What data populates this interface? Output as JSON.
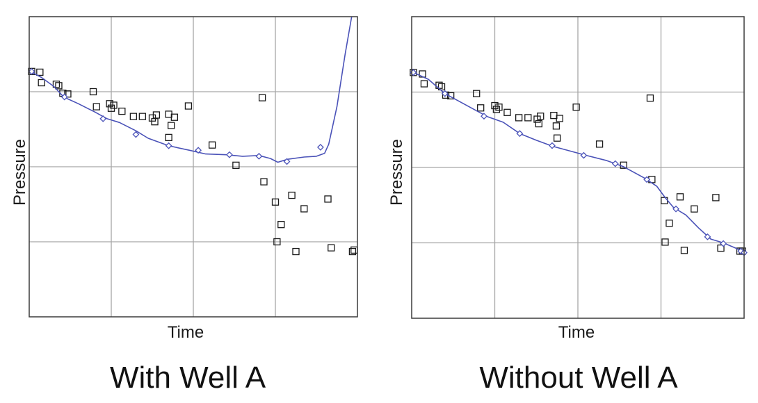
{
  "colors": {
    "fit_line": "#4a52b8",
    "marker_points": "#1a1a1a",
    "grid": "#a6a6a6",
    "frame": "#3a3a3a"
  },
  "chart_data": [
    {
      "type": "scatter",
      "caption": "With Well A",
      "xlabel": "Time",
      "ylabel": "Pressure",
      "xlim": [
        0,
        4
      ],
      "ylim": [
        0,
        4
      ],
      "grid": true,
      "series": [
        {
          "kind": "observed-points",
          "marker": "open-square",
          "points": [
            [
              0.03,
              3.27
            ],
            [
              0.13,
              3.26
            ],
            [
              0.15,
              3.12
            ],
            [
              0.33,
              3.1
            ],
            [
              0.36,
              3.08
            ],
            [
              0.41,
              2.98
            ],
            [
              0.47,
              2.97
            ],
            [
              0.78,
              3.0
            ],
            [
              0.82,
              2.8
            ],
            [
              0.98,
              2.84
            ],
            [
              1.0,
              2.78
            ],
            [
              1.03,
              2.82
            ],
            [
              1.13,
              2.74
            ],
            [
              1.27,
              2.67
            ],
            [
              1.38,
              2.67
            ],
            [
              1.5,
              2.65
            ],
            [
              1.55,
              2.69
            ],
            [
              1.53,
              2.6
            ],
            [
              1.7,
              2.7
            ],
            [
              1.77,
              2.66
            ],
            [
              1.73,
              2.55
            ],
            [
              1.7,
              2.39
            ],
            [
              1.94,
              2.81
            ],
            [
              2.23,
              2.29
            ],
            [
              2.52,
              2.02
            ],
            [
              2.84,
              2.92
            ],
            [
              2.86,
              1.8
            ],
            [
              3.0,
              1.53
            ],
            [
              3.07,
              1.23
            ],
            [
              3.02,
              1.0
            ],
            [
              3.2,
              1.62
            ],
            [
              3.25,
              0.87
            ],
            [
              3.35,
              1.44
            ],
            [
              3.64,
              1.57
            ],
            [
              3.68,
              0.92
            ],
            [
              3.94,
              0.87
            ],
            [
              3.96,
              0.89
            ]
          ]
        },
        {
          "kind": "fitted-curve",
          "marker": "diamond",
          "curve": [
            [
              0,
              3.28
            ],
            [
              0.15,
              3.19
            ],
            [
              0.3,
              3.07
            ],
            [
              0.42,
              2.93
            ],
            [
              0.6,
              2.84
            ],
            [
              0.8,
              2.73
            ],
            [
              0.95,
              2.64
            ],
            [
              1.1,
              2.59
            ],
            [
              1.3,
              2.48
            ],
            [
              1.45,
              2.38
            ],
            [
              1.7,
              2.28
            ],
            [
              1.95,
              2.22
            ],
            [
              2.15,
              2.17
            ],
            [
              2.4,
              2.16
            ],
            [
              2.6,
              2.14
            ],
            [
              2.8,
              2.15
            ],
            [
              2.94,
              2.11
            ],
            [
              3.03,
              2.06
            ],
            [
              3.15,
              2.1
            ],
            [
              3.35,
              2.13
            ],
            [
              3.5,
              2.14
            ],
            [
              3.6,
              2.18
            ],
            [
              3.65,
              2.3
            ],
            [
              3.75,
              2.8
            ],
            [
              3.85,
              3.5
            ],
            [
              3.93,
              4.0
            ]
          ],
          "markers": [
            [
              0.03,
              3.27
            ],
            [
              0.43,
              2.93
            ],
            [
              0.9,
              2.64
            ],
            [
              1.3,
              2.43
            ],
            [
              1.7,
              2.28
            ],
            [
              2.06,
              2.22
            ],
            [
              2.44,
              2.16
            ],
            [
              2.8,
              2.14
            ],
            [
              3.14,
              2.07
            ],
            [
              3.55,
              2.26
            ]
          ]
        }
      ]
    },
    {
      "type": "scatter",
      "caption": "Without Well A",
      "xlabel": "Time",
      "ylabel": "Pressure",
      "xlim": [
        0,
        4
      ],
      "ylim": [
        0,
        4
      ],
      "grid": true,
      "series": [
        {
          "kind": "observed-points",
          "marker": "open-square",
          "points": [
            [
              0.02,
              3.26
            ],
            [
              0.13,
              3.24
            ],
            [
              0.15,
              3.11
            ],
            [
              0.33,
              3.09
            ],
            [
              0.36,
              3.07
            ],
            [
              0.41,
              2.96
            ],
            [
              0.47,
              2.95
            ],
            [
              0.78,
              2.98
            ],
            [
              0.83,
              2.79
            ],
            [
              1.0,
              2.82
            ],
            [
              1.02,
              2.77
            ],
            [
              1.05,
              2.8
            ],
            [
              1.15,
              2.73
            ],
            [
              1.29,
              2.66
            ],
            [
              1.4,
              2.66
            ],
            [
              1.51,
              2.64
            ],
            [
              1.55,
              2.68
            ],
            [
              1.53,
              2.58
            ],
            [
              1.71,
              2.69
            ],
            [
              1.78,
              2.65
            ],
            [
              1.74,
              2.55
            ],
            [
              1.75,
              2.39
            ],
            [
              1.98,
              2.8
            ],
            [
              2.26,
              2.31
            ],
            [
              2.55,
              2.03
            ],
            [
              2.87,
              2.92
            ],
            [
              2.89,
              1.84
            ],
            [
              3.04,
              1.56
            ],
            [
              3.1,
              1.26
            ],
            [
              3.05,
              1.01
            ],
            [
              3.23,
              1.61
            ],
            [
              3.28,
              0.9
            ],
            [
              3.4,
              1.45
            ],
            [
              3.66,
              1.6
            ],
            [
              3.72,
              0.93
            ],
            [
              3.95,
              0.89
            ],
            [
              3.98,
              0.89
            ]
          ]
        },
        {
          "kind": "fitted-curve",
          "marker": "diamond",
          "curve": [
            [
              0,
              3.27
            ],
            [
              0.2,
              3.17
            ],
            [
              0.4,
              2.98
            ],
            [
              0.6,
              2.86
            ],
            [
              0.8,
              2.74
            ],
            [
              0.92,
              2.67
            ],
            [
              1.1,
              2.6
            ],
            [
              1.3,
              2.45
            ],
            [
              1.5,
              2.36
            ],
            [
              1.7,
              2.28
            ],
            [
              1.9,
              2.22
            ],
            [
              2.1,
              2.16
            ],
            [
              2.35,
              2.09
            ],
            [
              2.55,
              2.01
            ],
            [
              2.8,
              1.86
            ],
            [
              2.95,
              1.75
            ],
            [
              3.05,
              1.6
            ],
            [
              3.15,
              1.47
            ],
            [
              3.3,
              1.37
            ],
            [
              3.45,
              1.2
            ],
            [
              3.6,
              1.05
            ],
            [
              3.75,
              1.0
            ],
            [
              3.9,
              0.93
            ],
            [
              4.0,
              0.87
            ]
          ],
          "markers": [
            [
              0.02,
              3.26
            ],
            [
              0.4,
              2.98
            ],
            [
              0.87,
              2.68
            ],
            [
              1.3,
              2.45
            ],
            [
              1.69,
              2.29
            ],
            [
              2.07,
              2.16
            ],
            [
              2.45,
              2.05
            ],
            [
              2.83,
              1.84
            ],
            [
              3.18,
              1.45
            ],
            [
              3.56,
              1.08
            ],
            [
              3.75,
              0.99
            ],
            [
              3.96,
              0.89
            ],
            [
              4.0,
              0.87
            ]
          ]
        }
      ]
    }
  ]
}
